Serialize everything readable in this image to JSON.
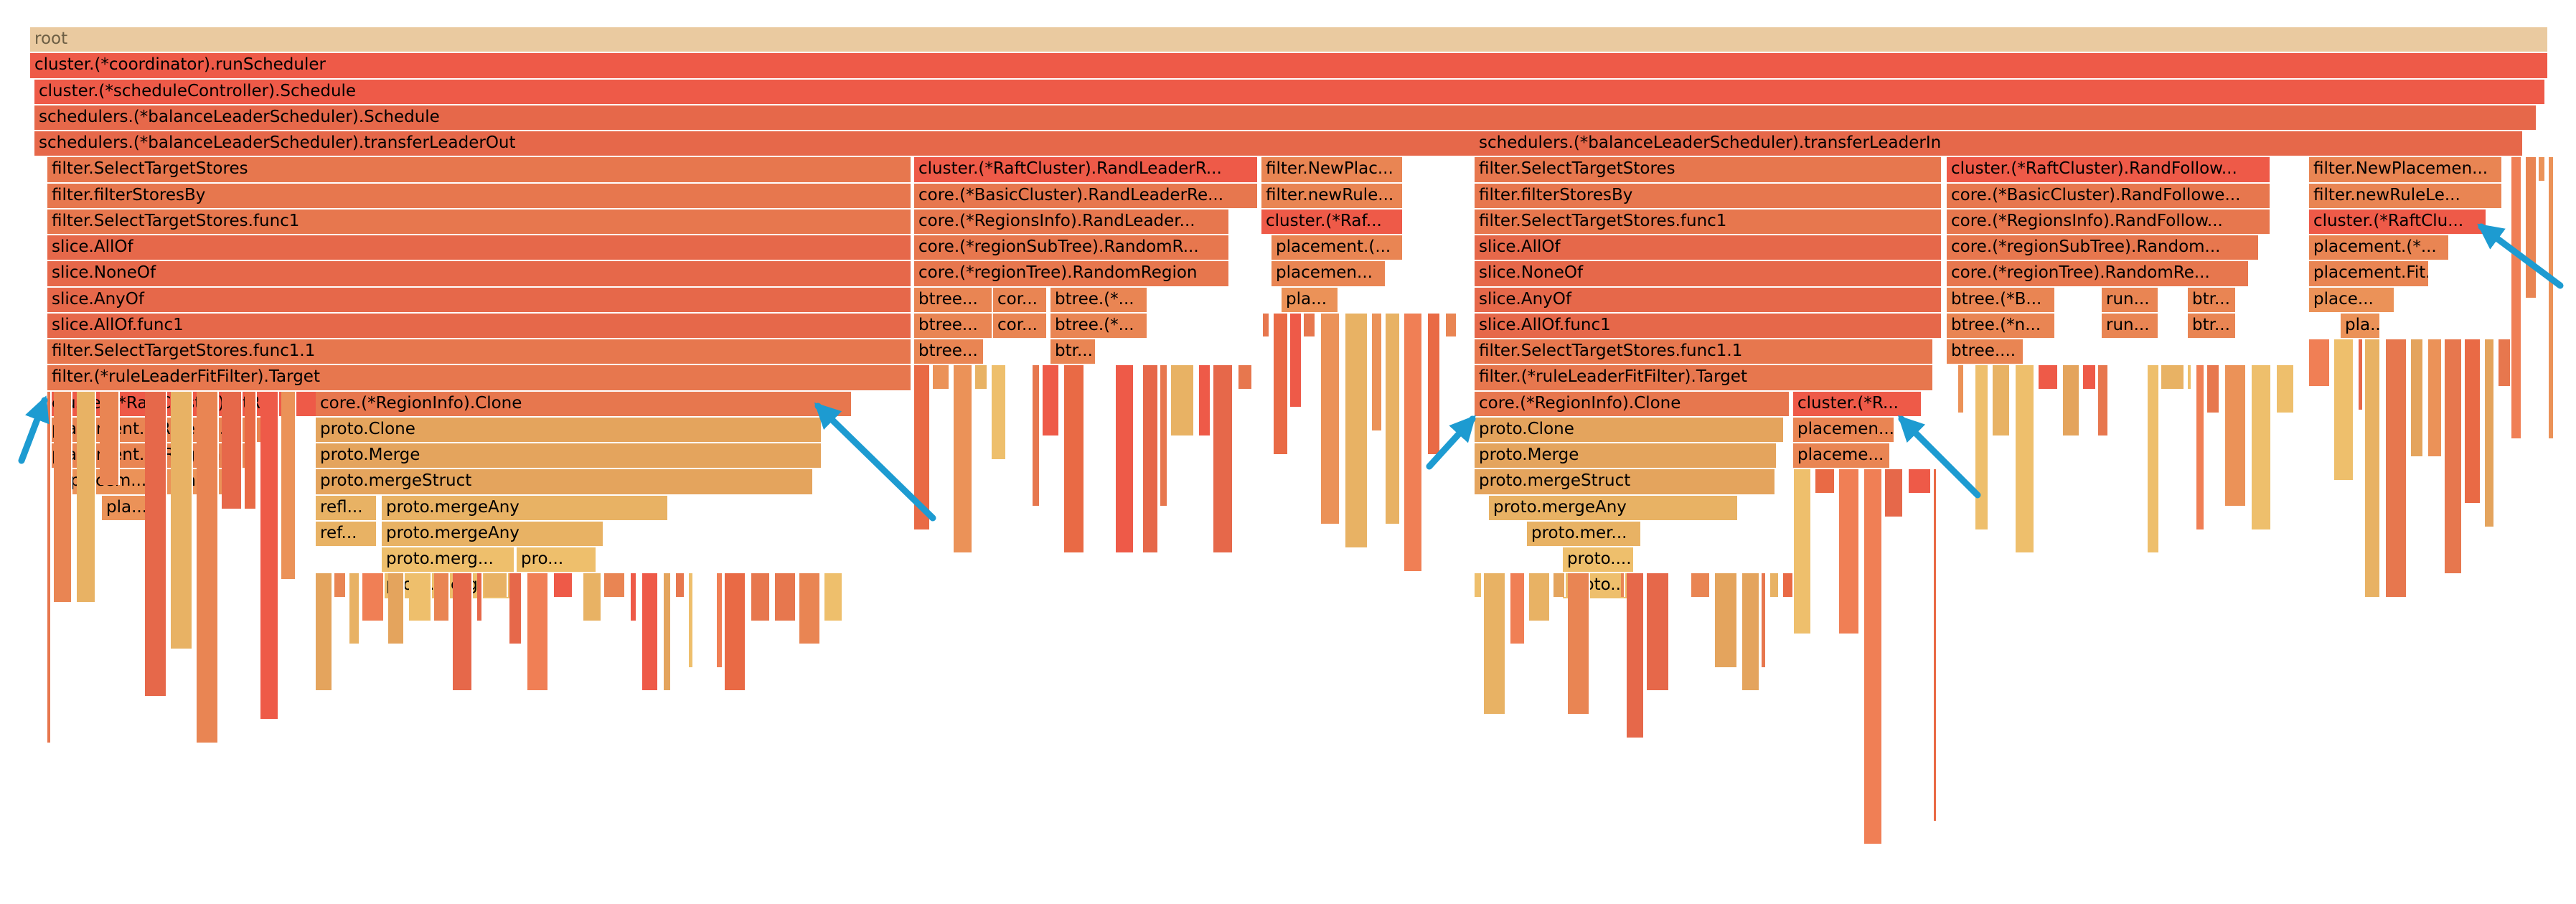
{
  "flamegraph": {
    "root_label": "root",
    "palette": [
      "#ee5a48",
      "#e6684a",
      "#e7774e",
      "#e98553",
      "#eb9258",
      "#e4a45d",
      "#e8b264",
      "#eebf6c",
      "#f07f55",
      "#e96a45"
    ],
    "root_color": "#eacaa0",
    "accent_color": "#1d9bd1",
    "frames": [
      {
        "row": 1,
        "label": "cluster.(*coordinator).runScheduler",
        "shade": 0
      },
      {
        "row": 2,
        "label": "cluster.(*scheduleController).Schedule",
        "shade": 0
      },
      {
        "row": 3,
        "label": "schedulers.(*balanceLeaderScheduler).Schedule",
        "shade": 1
      },
      {
        "row": 4,
        "label": "schedulers.(*balanceLeaderScheduler).transferLeaderOut",
        "shade": 1
      },
      {
        "row": 4,
        "label": "schedulers.(*balanceLeaderScheduler).transferLeaderIn",
        "shade": 1
      },
      {
        "row": 5,
        "label": "filter.SelectTargetStores",
        "shade": 2
      },
      {
        "row": 5,
        "label": "cluster.(*RaftCluster).RandLeaderR...",
        "shade": 0
      },
      {
        "row": 5,
        "label": "filter.NewPlac...",
        "shade": 3
      },
      {
        "row": 5,
        "label": "filter.SelectTargetStores",
        "shade": 2
      },
      {
        "row": 5,
        "label": "cluster.(*RaftCluster).RandFollow...",
        "shade": 0
      },
      {
        "row": 5,
        "label": "filter.NewPlacemen...",
        "shade": 3
      },
      {
        "row": 6,
        "label": "filter.filterStoresBy",
        "shade": 2
      },
      {
        "row": 6,
        "label": "core.(*BasicCluster).RandLeaderRe...",
        "shade": 2
      },
      {
        "row": 6,
        "label": "filter.newRule...",
        "shade": 3
      },
      {
        "row": 6,
        "label": "filter.filterStoresBy",
        "shade": 2
      },
      {
        "row": 6,
        "label": "core.(*BasicCluster).RandFollowe...",
        "shade": 2
      },
      {
        "row": 6,
        "label": "filter.newRuleLe...",
        "shade": 3
      },
      {
        "row": 7,
        "label": "filter.SelectTargetStores.func1",
        "shade": 2
      },
      {
        "row": 7,
        "label": "core.(*RegionsInfo).RandLeader...",
        "shade": 2
      },
      {
        "row": 7,
        "label": "cluster.(*Raf...",
        "shade": 0
      },
      {
        "row": 7,
        "label": "filter.SelectTargetStores.func1",
        "shade": 2
      },
      {
        "row": 7,
        "label": "core.(*RegionsInfo).RandFollow...",
        "shade": 2
      },
      {
        "row": 7,
        "label": "cluster.(*RaftClu...",
        "shade": 0
      },
      {
        "row": 8,
        "label": "slice.AllOf",
        "shade": 1
      },
      {
        "row": 8,
        "label": "core.(*regionSubTree).RandomR...",
        "shade": 2
      },
      {
        "row": 8,
        "label": "placement.(...",
        "shade": 3
      },
      {
        "row": 8,
        "label": "slice.AllOf",
        "shade": 1
      },
      {
        "row": 8,
        "label": "core.(*regionSubTree).Random...",
        "shade": 2
      },
      {
        "row": 8,
        "label": "placement.(*...",
        "shade": 3
      },
      {
        "row": 9,
        "label": "slice.NoneOf",
        "shade": 1
      },
      {
        "row": 9,
        "label": "core.(*regionTree).RandomRegion",
        "shade": 2
      },
      {
        "row": 9,
        "label": "placemen...",
        "shade": 3
      },
      {
        "row": 9,
        "label": "slice.NoneOf",
        "shade": 1
      },
      {
        "row": 9,
        "label": "core.(*regionTree).RandomRe...",
        "shade": 2
      },
      {
        "row": 9,
        "label": "placement.Fit...",
        "shade": 3
      },
      {
        "row": 10,
        "label": "slice.AnyOf",
        "shade": 1
      },
      {
        "row": 10,
        "label": "btree...",
        "shade": 3
      },
      {
        "row": 10,
        "label": "cor...",
        "shade": 3
      },
      {
        "row": 10,
        "label": "btree.(*...",
        "shade": 3
      },
      {
        "row": 10,
        "label": "pla...",
        "shade": 4
      },
      {
        "row": 10,
        "label": "slice.AnyOf",
        "shade": 1
      },
      {
        "row": 10,
        "label": "btree.(*B...",
        "shade": 3
      },
      {
        "row": 10,
        "label": "run...",
        "shade": 3
      },
      {
        "row": 10,
        "label": "btr...",
        "shade": 3
      },
      {
        "row": 10,
        "label": "place...",
        "shade": 4
      },
      {
        "row": 11,
        "label": "slice.AllOf.func1",
        "shade": 1
      },
      {
        "row": 11,
        "label": "btree...",
        "shade": 3
      },
      {
        "row": 11,
        "label": "cor...",
        "shade": 3
      },
      {
        "row": 11,
        "label": "btree.(*...",
        "shade": 3
      },
      {
        "row": 11,
        "label": "slice.AllOf.func1",
        "shade": 1
      },
      {
        "row": 11,
        "label": "btree.(*n...",
        "shade": 3
      },
      {
        "row": 11,
        "label": "run...",
        "shade": 3
      },
      {
        "row": 11,
        "label": "btr...",
        "shade": 3
      },
      {
        "row": 11,
        "label": "pla...",
        "shade": 4
      },
      {
        "row": 12,
        "label": "filter.SelectTargetStores.func1.1",
        "shade": 2
      },
      {
        "row": 12,
        "label": "btree...",
        "shade": 3
      },
      {
        "row": 12,
        "label": "btr...",
        "shade": 3
      },
      {
        "row": 12,
        "label": "filter.SelectTargetStores.func1.1",
        "shade": 2
      },
      {
        "row": 12,
        "label": "btree....",
        "shade": 3
      },
      {
        "row": 13,
        "label": "filter.(*ruleLeaderFitFilter).Target",
        "shade": 2
      },
      {
        "row": 13,
        "label": "filter.(*ruleLeaderFitFilter).Target",
        "shade": 2
      },
      {
        "row": 14,
        "label": "cluster.(*RaftCluster).FitRe...",
        "shade": 0
      },
      {
        "row": 14,
        "label": "core.(*RegionInfo).Clone",
        "shade": 2
      },
      {
        "row": 14,
        "label": "core.(*RegionInfo).Clone",
        "shade": 2
      },
      {
        "row": 14,
        "label": "cluster.(*R...",
        "shade": 0
      },
      {
        "row": 15,
        "label": "placement.(*RuleMa...",
        "shade": 3
      },
      {
        "row": 15,
        "label": "proto.Clone",
        "shade": 5
      },
      {
        "row": 15,
        "label": "proto.Clone",
        "shade": 5
      },
      {
        "row": 15,
        "label": "placemen...",
        "shade": 3
      },
      {
        "row": 16,
        "label": "placement.FitRegion",
        "shade": 3
      },
      {
        "row": 16,
        "label": "proto.Merge",
        "shade": 5
      },
      {
        "row": 16,
        "label": "proto.Merge",
        "shade": 5
      },
      {
        "row": 16,
        "label": "placeme...",
        "shade": 3
      },
      {
        "row": 17,
        "label": "placem...",
        "shade": 4
      },
      {
        "row": 17,
        "label": "place...",
        "shade": 4
      },
      {
        "row": 17,
        "label": "proto.mergeStruct",
        "shade": 5
      },
      {
        "row": 17,
        "label": "proto.mergeStruct",
        "shade": 5
      },
      {
        "row": 18,
        "label": "pla...",
        "shade": 4
      },
      {
        "row": 18,
        "label": "refl...",
        "shade": 6
      },
      {
        "row": 18,
        "label": "proto.mergeAny",
        "shade": 6
      },
      {
        "row": 18,
        "label": "proto.mergeAny",
        "shade": 6
      },
      {
        "row": 19,
        "label": "ref...",
        "shade": 6
      },
      {
        "row": 19,
        "label": "proto.mergeAny",
        "shade": 6
      },
      {
        "row": 19,
        "label": "proto.mer...",
        "shade": 6
      },
      {
        "row": 20,
        "label": "proto.merg...",
        "shade": 7
      },
      {
        "row": 20,
        "label": "pro...",
        "shade": 7
      },
      {
        "row": 20,
        "label": "proto....",
        "shade": 7
      },
      {
        "row": 21,
        "label": "proto.merg...",
        "shade": 7
      },
      {
        "row": 21,
        "label": "proto....",
        "shade": 7
      }
    ]
  }
}
